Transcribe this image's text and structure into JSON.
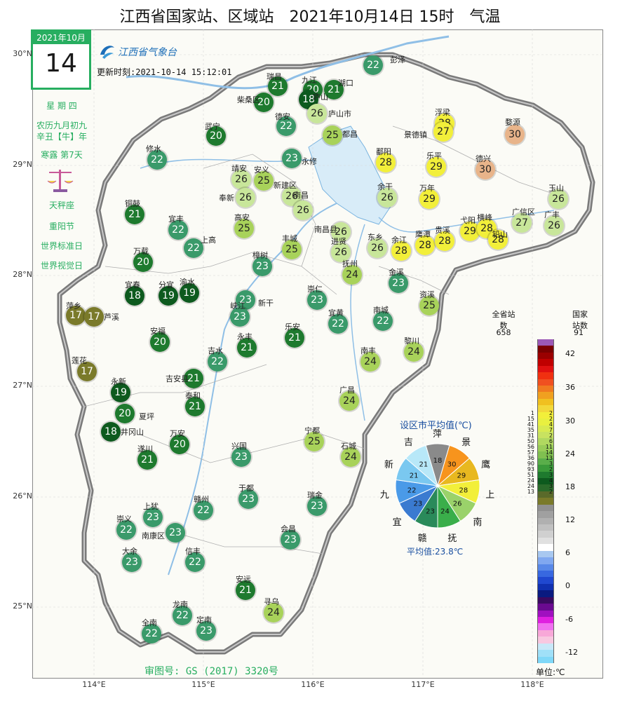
{
  "title": "江西省国家站、区域站　2021年10月14日 15时　气温",
  "calendar": {
    "month_label": "2021年10月",
    "day": "14",
    "weekday": "星 期 四",
    "lunar1": "农历九月初九",
    "lunar2": "辛丑【牛】年",
    "solar_term": "寒露 第7天",
    "zodiac": "天秤座",
    "festivals": [
      "重阳节",
      "世界标准日",
      "世界视觉日"
    ]
  },
  "logo_text": "江西省气象台",
  "update_time": "更新时刻:2021-10-14 15:12:01",
  "approval": "审图号: GS (2017) 3320号",
  "lat_labels": [
    "30°N",
    "29°N",
    "28°N",
    "27°N",
    "26°N",
    "25°N"
  ],
  "lon_labels": [
    "114°E",
    "115°E",
    "116°E",
    "117°E",
    "118°E"
  ],
  "stations": [
    {
      "name": "瑞昌",
      "value": 21,
      "color": "#1e7a2e"
    },
    {
      "name": "九江",
      "value": 20,
      "color": "#1e7a2e"
    },
    {
      "name": "湖口",
      "value": 21,
      "color": "#1e7a2e"
    },
    {
      "name": "彭泽",
      "value": 22,
      "color": "#3a9a6a"
    },
    {
      "name": "柴桑区",
      "value": 20,
      "color": "#1e7a2e"
    },
    {
      "name": "庐山",
      "value": 18,
      "color": "#0d5a1e"
    },
    {
      "name": "庐山市",
      "value": 26,
      "color": "#c8e69a"
    },
    {
      "name": "德安",
      "value": 22,
      "color": "#3a9a6a"
    },
    {
      "name": "武宁",
      "value": 20,
      "color": "#1e7a2e"
    },
    {
      "name": "都昌",
      "value": 25,
      "color": "#a8d25a"
    },
    {
      "name": "修水",
      "value": 22,
      "color": "#3a9a6a"
    },
    {
      "name": "永修",
      "value": 23,
      "color": "#3a9a6a"
    },
    {
      "name": "浮梁",
      "value": 28,
      "color": "#f2ef3a"
    },
    {
      "name": "景德镇",
      "value": 27,
      "color": "#f2ef3a"
    },
    {
      "name": "婺源",
      "value": 30,
      "color": "#e8b48a"
    },
    {
      "name": "鄱阳",
      "value": 28,
      "color": "#f2ef3a"
    },
    {
      "name": "乐平",
      "value": 29,
      "color": "#f2ef3a"
    },
    {
      "name": "德兴",
      "value": 30,
      "color": "#e8b48a"
    },
    {
      "name": "玉山",
      "value": 26,
      "color": "#c8e69a"
    },
    {
      "name": "靖安",
      "value": 26,
      "color": "#c8e69a"
    },
    {
      "name": "安义",
      "value": 25,
      "color": "#a8d25a"
    },
    {
      "name": "奉新",
      "value": 26,
      "color": "#c8e69a"
    },
    {
      "name": "新建区",
      "value": 26,
      "color": "#c8e69a"
    },
    {
      "name": "南昌",
      "value": 26,
      "color": "#c8e69a"
    },
    {
      "name": "余干",
      "value": 26,
      "color": "#c8e69a"
    },
    {
      "name": "万年",
      "value": 29,
      "color": "#f2ef3a"
    },
    {
      "name": "广丰",
      "value": 26,
      "color": "#c8e69a"
    },
    {
      "name": "铜鼓",
      "value": 21,
      "color": "#1e7a2e"
    },
    {
      "name": "宜丰",
      "value": 22,
      "color": "#3a9a6a"
    },
    {
      "name": "高安",
      "value": 25,
      "color": "#a8d25a"
    },
    {
      "name": "南昌县",
      "value": 26,
      "color": "#c8e69a"
    },
    {
      "name": "东乡",
      "value": 26,
      "color": "#c8e69a"
    },
    {
      "name": "余江",
      "value": 28,
      "color": "#f2ef3a"
    },
    {
      "name": "鹰潭",
      "value": 28,
      "color": "#f2ef3a"
    },
    {
      "name": "贵溪",
      "value": 28,
      "color": "#f2ef3a"
    },
    {
      "name": "弋阳",
      "value": 29,
      "color": "#f2ef3a"
    },
    {
      "name": "横峰",
      "value": 28,
      "color": "#f2ef3a"
    },
    {
      "name": "铅山",
      "value": 28,
      "color": "#f2ef3a"
    },
    {
      "name": "广信区",
      "value": 27,
      "color": "#c8e69a"
    },
    {
      "name": "上高",
      "value": 22,
      "color": "#3a9a6a"
    },
    {
      "name": "丰城",
      "value": 25,
      "color": "#a8d25a"
    },
    {
      "name": "进贤",
      "value": 26,
      "color": "#c8e69a"
    },
    {
      "name": "万载",
      "value": 20,
      "color": "#1e7a2e"
    },
    {
      "name": "樟树",
      "value": 23,
      "color": "#3a9a6a"
    },
    {
      "name": "抚州",
      "value": 24,
      "color": "#a8d25a"
    },
    {
      "name": "金溪",
      "value": 23,
      "color": "#3a9a6a"
    },
    {
      "name": "宜春",
      "value": 18,
      "color": "#0d5a1e"
    },
    {
      "name": "分宜",
      "value": 19,
      "color": "#0d5a1e"
    },
    {
      "name": "渝水",
      "value": 19,
      "color": "#0d5a1e"
    },
    {
      "name": "新干",
      "value": 23,
      "color": "#3a9a6a"
    },
    {
      "name": "崇仁",
      "value": 23,
      "color": "#3a9a6a"
    },
    {
      "name": "资溪",
      "value": 25,
      "color": "#a8d25a"
    },
    {
      "name": "萍乡",
      "value": 17,
      "color": "#7a7a2a"
    },
    {
      "name": "芦溪",
      "value": 17,
      "color": "#7a7a2a"
    },
    {
      "name": "峡江",
      "value": 23,
      "color": "#3a9a6a"
    },
    {
      "name": "宜黄",
      "value": 22,
      "color": "#3a9a6a"
    },
    {
      "name": "南城",
      "value": 22,
      "color": "#3a9a6a"
    },
    {
      "name": "安福",
      "value": 20,
      "color": "#1e7a2e"
    },
    {
      "name": "永丰",
      "value": 21,
      "color": "#1e7a2e"
    },
    {
      "name": "乐安",
      "value": 21,
      "color": "#1e7a2e"
    },
    {
      "name": "黎川",
      "value": 24,
      "color": "#a8d25a"
    },
    {
      "name": "吉水",
      "value": 22,
      "color": "#3a9a6a"
    },
    {
      "name": "南丰",
      "value": 24,
      "color": "#a8d25a"
    },
    {
      "name": "莲花",
      "value": 17,
      "color": "#7a7a2a"
    },
    {
      "name": "吉安县",
      "value": 21,
      "color": "#1e7a2e"
    },
    {
      "name": "泰和",
      "value": 21,
      "color": "#1e7a2e"
    },
    {
      "name": "永新",
      "value": 19,
      "color": "#0d5a1e"
    },
    {
      "name": "夏坪",
      "value": 20,
      "color": "#1e7a2e"
    },
    {
      "name": "广昌",
      "value": 24,
      "color": "#a8d25a"
    },
    {
      "name": "井冈山",
      "value": 18,
      "color": "#0d5a1e"
    },
    {
      "name": "万安",
      "value": 20,
      "color": "#1e7a2e"
    },
    {
      "name": "遂川",
      "value": 21,
      "color": "#1e7a2e"
    },
    {
      "name": "宁都",
      "value": 25,
      "color": "#a8d25a"
    },
    {
      "name": "石城",
      "value": 24,
      "color": "#a8d25a"
    },
    {
      "name": "兴国",
      "value": 23,
      "color": "#3a9a6a"
    },
    {
      "name": "于都",
      "value": 23,
      "color": "#3a9a6a"
    },
    {
      "name": "赣州",
      "value": 22,
      "color": "#3a9a6a"
    },
    {
      "name": "瑞金",
      "value": 23,
      "color": "#3a9a6a"
    },
    {
      "name": "崇义",
      "value": 22,
      "color": "#3a9a6a"
    },
    {
      "name": "上犹",
      "value": 23,
      "color": "#3a9a6a"
    },
    {
      "name": "南康区",
      "value": 23,
      "color": "#3a9a6a"
    },
    {
      "name": "会昌",
      "value": 23,
      "color": "#3a9a6a"
    },
    {
      "name": "大余",
      "value": 23,
      "color": "#3a9a6a"
    },
    {
      "name": "信丰",
      "value": 22,
      "color": "#3a9a6a"
    },
    {
      "name": "安远",
      "value": 21,
      "color": "#1e7a2e"
    },
    {
      "name": "寻乌",
      "value": 24,
      "color": "#a8d25a"
    },
    {
      "name": "龙南",
      "value": 22,
      "color": "#3a9a6a"
    },
    {
      "name": "全南",
      "value": 22,
      "color": "#3a9a6a"
    },
    {
      "name": "定南",
      "value": 23,
      "color": "#3a9a6a"
    }
  ],
  "pie": {
    "title": "设区市平均值(℃)",
    "average": "平均值:23.8℃",
    "slices": [
      {
        "city": "萍",
        "value": 18,
        "color": "#8a8a8a"
      },
      {
        "city": "景",
        "value": 30,
        "color": "#f7941d"
      },
      {
        "city": "鹰",
        "value": 29,
        "color": "#e8b820"
      },
      {
        "city": "上",
        "value": 28,
        "color": "#f2ef3a"
      },
      {
        "city": "南",
        "value": 26,
        "color": "#9ad26a"
      },
      {
        "city": "抚",
        "value": 24,
        "color": "#3aae4a"
      },
      {
        "city": "赣",
        "value": 23,
        "color": "#2a8a5a"
      },
      {
        "city": "宜",
        "value": 23,
        "color": "#3a7ad0"
      },
      {
        "city": "九",
        "value": 22,
        "color": "#4a9ae8"
      },
      {
        "city": "新",
        "value": 21,
        "color": "#7ac8f0"
      },
      {
        "city": "吉",
        "value": 21,
        "color": "#b8e8f8"
      }
    ]
  },
  "legend": {
    "total_label": "全省站数",
    "total_count": "658",
    "national_label": "国家站数",
    "national_count": "91",
    "unit": "单位:℃",
    "ticks": [
      "42",
      "36",
      "30",
      "24",
      "18",
      "12",
      "6",
      "0",
      "-6",
      "-12"
    ],
    "colors": [
      "#9b59b6",
      "#7a0000",
      "#9a0000",
      "#c00000",
      "#e01010",
      "#f03010",
      "#f05020",
      "#f07a20",
      "#f0a020",
      "#f0c020",
      "#f2d83a",
      "#f2ef3a",
      "#e8f040",
      "#d8ea50",
      "#c8e260",
      "#b0d860",
      "#98cc58",
      "#80c050",
      "#5aae4a",
      "#3a9a3a",
      "#1e7a2e",
      "#0d5a1e",
      "#2a6a2a",
      "#5a6a2a",
      "#7a7a2a",
      "#909090",
      "#a0a0a0",
      "#b0b0b0",
      "#c0c0c0",
      "#d0d0d0",
      "#e0e0e0",
      "#ffffff",
      "#a8c8f0",
      "#80a8f0",
      "#5888e8",
      "#3868e0",
      "#2048d0",
      "#1030b0",
      "#0a1a80",
      "#3a0a60",
      "#6a0a90",
      "#a010c0",
      "#e020e0",
      "#f070f0",
      "#f8a8d8",
      "#f8c8e0",
      "#c8e8f8",
      "#a0e0f8",
      "#80d8f8"
    ],
    "counts_total": [
      "1",
      "15",
      "41",
      "35",
      "31",
      "50",
      "56",
      "57",
      "36",
      "90",
      "93",
      "51",
      "24",
      "24",
      "13"
    ],
    "counts_nat": [
      "2",
      "2",
      "4",
      "7",
      "2",
      "6",
      "11",
      "14",
      "13",
      "3",
      "2",
      "3",
      "4",
      "3",
      "2"
    ]
  }
}
